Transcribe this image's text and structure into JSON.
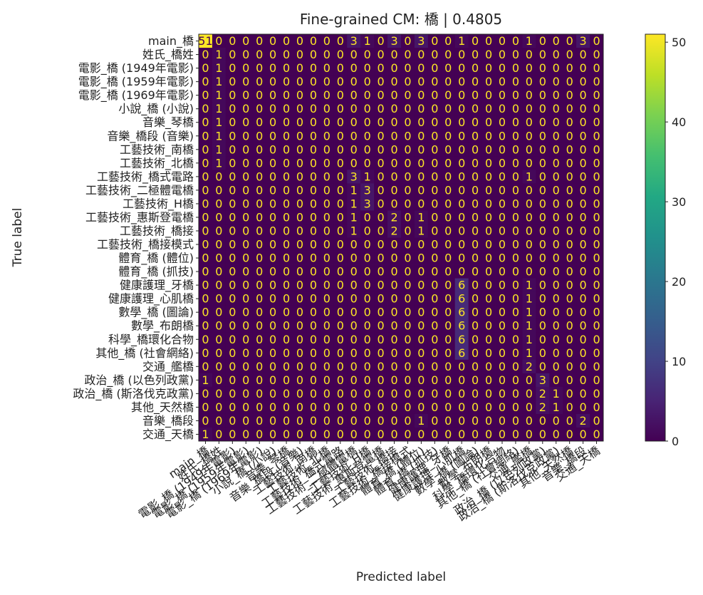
{
  "chart_data": {
    "type": "heatmap",
    "title": "Fine-grained CM: 橋 | 0.4805",
    "xlabel": "Predicted label",
    "ylabel": "True label",
    "labels": [
      "main_橋",
      "姓氏_橋姓",
      "電影_橋 (1949年電影)",
      "電影_橋 (1959年電影)",
      "電影_橋 (1969年電影)",
      "小說_橋 (小說)",
      "音樂_琴橋",
      "音樂_橋段 (音樂)",
      "工藝技術_南橋",
      "工藝技術_北橋",
      "工藝技術_橋式電路",
      "工藝技術_二極體電橋",
      "工藝技術_H橋",
      "工藝技術_惠斯登電橋",
      "工藝技術_橋接",
      "工藝技術_橋接模式",
      "體育_橋 (體位)",
      "體育_橋 (抓技)",
      "健康護理_牙橋",
      "健康護理_心肌橋",
      "數學_橋 (圖論)",
      "數學_布朗橋",
      "科學_橋環化合物",
      "其他_橋 (社會網絡)",
      "交通_艦橋",
      "政治_橋 (以色列政黨)",
      "政治_橋 (斯洛伐克政黨)",
      "其他_天然橋",
      "音樂_橋段",
      "交通_天橋"
    ],
    "matrix": [
      [
        51,
        0,
        0,
        0,
        0,
        0,
        0,
        0,
        0,
        0,
        0,
        3,
        1,
        0,
        3,
        0,
        3,
        0,
        0,
        1,
        0,
        0,
        0,
        0,
        1,
        0,
        0,
        0,
        3,
        0
      ],
      [
        0,
        1,
        0,
        0,
        0,
        0,
        0,
        0,
        0,
        0,
        0,
        0,
        0,
        0,
        0,
        0,
        0,
        0,
        0,
        0,
        0,
        0,
        0,
        0,
        0,
        0,
        0,
        0,
        0,
        0
      ],
      [
        0,
        1,
        0,
        0,
        0,
        0,
        0,
        0,
        0,
        0,
        0,
        0,
        0,
        0,
        0,
        0,
        0,
        0,
        0,
        0,
        0,
        0,
        0,
        0,
        0,
        0,
        0,
        0,
        0,
        0
      ],
      [
        0,
        1,
        0,
        0,
        0,
        0,
        0,
        0,
        0,
        0,
        0,
        0,
        0,
        0,
        0,
        0,
        0,
        0,
        0,
        0,
        0,
        0,
        0,
        0,
        0,
        0,
        0,
        0,
        0,
        0
      ],
      [
        0,
        1,
        0,
        0,
        0,
        0,
        0,
        0,
        0,
        0,
        0,
        0,
        0,
        0,
        0,
        0,
        0,
        0,
        0,
        0,
        0,
        0,
        0,
        0,
        0,
        0,
        0,
        0,
        0,
        0
      ],
      [
        0,
        1,
        0,
        0,
        0,
        0,
        0,
        0,
        0,
        0,
        0,
        0,
        0,
        0,
        0,
        0,
        0,
        0,
        0,
        0,
        0,
        0,
        0,
        0,
        0,
        0,
        0,
        0,
        0,
        0
      ],
      [
        0,
        1,
        0,
        0,
        0,
        0,
        0,
        0,
        0,
        0,
        0,
        0,
        0,
        0,
        0,
        0,
        0,
        0,
        0,
        0,
        0,
        0,
        0,
        0,
        0,
        0,
        0,
        0,
        0,
        0
      ],
      [
        0,
        1,
        0,
        0,
        0,
        0,
        0,
        0,
        0,
        0,
        0,
        0,
        0,
        0,
        0,
        0,
        0,
        0,
        0,
        0,
        0,
        0,
        0,
        0,
        0,
        0,
        0,
        0,
        0,
        0
      ],
      [
        0,
        1,
        0,
        0,
        0,
        0,
        0,
        0,
        0,
        0,
        0,
        0,
        0,
        0,
        0,
        0,
        0,
        0,
        0,
        0,
        0,
        0,
        0,
        0,
        0,
        0,
        0,
        0,
        0,
        0
      ],
      [
        0,
        1,
        0,
        0,
        0,
        0,
        0,
        0,
        0,
        0,
        0,
        0,
        0,
        0,
        0,
        0,
        0,
        0,
        0,
        0,
        0,
        0,
        0,
        0,
        0,
        0,
        0,
        0,
        0,
        0
      ],
      [
        0,
        0,
        0,
        0,
        0,
        0,
        0,
        0,
        0,
        0,
        0,
        3,
        1,
        0,
        0,
        0,
        0,
        0,
        0,
        0,
        0,
        0,
        0,
        0,
        1,
        0,
        0,
        0,
        0,
        0
      ],
      [
        0,
        0,
        0,
        0,
        0,
        0,
        0,
        0,
        0,
        0,
        0,
        1,
        3,
        0,
        0,
        0,
        0,
        0,
        0,
        0,
        0,
        0,
        0,
        0,
        0,
        0,
        0,
        0,
        0,
        0
      ],
      [
        0,
        0,
        0,
        0,
        0,
        0,
        0,
        0,
        0,
        0,
        0,
        1,
        3,
        0,
        0,
        0,
        0,
        0,
        0,
        0,
        0,
        0,
        0,
        0,
        0,
        0,
        0,
        0,
        0,
        0
      ],
      [
        0,
        0,
        0,
        0,
        0,
        0,
        0,
        0,
        0,
        0,
        0,
        1,
        0,
        0,
        2,
        0,
        1,
        0,
        0,
        0,
        0,
        0,
        0,
        0,
        0,
        0,
        0,
        0,
        0,
        0
      ],
      [
        0,
        0,
        0,
        0,
        0,
        0,
        0,
        0,
        0,
        0,
        0,
        1,
        0,
        0,
        2,
        0,
        1,
        0,
        0,
        0,
        0,
        0,
        0,
        0,
        0,
        0,
        0,
        0,
        0,
        0
      ],
      [
        0,
        0,
        0,
        0,
        0,
        0,
        0,
        0,
        0,
        0,
        0,
        0,
        0,
        0,
        0,
        0,
        0,
        0,
        0,
        0,
        0,
        0,
        0,
        0,
        0,
        0,
        0,
        0,
        0,
        0
      ],
      [
        0,
        0,
        0,
        0,
        0,
        0,
        0,
        0,
        0,
        0,
        0,
        0,
        0,
        0,
        0,
        0,
        0,
        0,
        0,
        0,
        0,
        0,
        0,
        0,
        0,
        0,
        0,
        0,
        0,
        0
      ],
      [
        0,
        0,
        0,
        0,
        0,
        0,
        0,
        0,
        0,
        0,
        0,
        0,
        0,
        0,
        0,
        0,
        0,
        0,
        0,
        0,
        0,
        0,
        0,
        0,
        0,
        0,
        0,
        0,
        0,
        0
      ],
      [
        0,
        0,
        0,
        0,
        0,
        0,
        0,
        0,
        0,
        0,
        0,
        0,
        0,
        0,
        0,
        0,
        0,
        0,
        0,
        6,
        0,
        0,
        0,
        0,
        1,
        0,
        0,
        0,
        0,
        0
      ],
      [
        0,
        0,
        0,
        0,
        0,
        0,
        0,
        0,
        0,
        0,
        0,
        0,
        0,
        0,
        0,
        0,
        0,
        0,
        0,
        6,
        0,
        0,
        0,
        0,
        1,
        0,
        0,
        0,
        0,
        0
      ],
      [
        0,
        0,
        0,
        0,
        0,
        0,
        0,
        0,
        0,
        0,
        0,
        0,
        0,
        0,
        0,
        0,
        0,
        0,
        0,
        6,
        0,
        0,
        0,
        0,
        1,
        0,
        0,
        0,
        0,
        0
      ],
      [
        0,
        0,
        0,
        0,
        0,
        0,
        0,
        0,
        0,
        0,
        0,
        0,
        0,
        0,
        0,
        0,
        0,
        0,
        0,
        6,
        0,
        0,
        0,
        0,
        1,
        0,
        0,
        0,
        0,
        0
      ],
      [
        0,
        0,
        0,
        0,
        0,
        0,
        0,
        0,
        0,
        0,
        0,
        0,
        0,
        0,
        0,
        0,
        0,
        0,
        0,
        6,
        0,
        0,
        0,
        0,
        1,
        0,
        0,
        0,
        0,
        0
      ],
      [
        0,
        0,
        0,
        0,
        0,
        0,
        0,
        0,
        0,
        0,
        0,
        0,
        0,
        0,
        0,
        0,
        0,
        0,
        0,
        6,
        0,
        0,
        0,
        0,
        1,
        0,
        0,
        0,
        0,
        0
      ],
      [
        0,
        0,
        0,
        0,
        0,
        0,
        0,
        0,
        0,
        0,
        0,
        0,
        0,
        0,
        0,
        0,
        0,
        0,
        0,
        0,
        0,
        0,
        0,
        0,
        2,
        0,
        0,
        0,
        0,
        0
      ],
      [
        1,
        0,
        0,
        0,
        0,
        0,
        0,
        0,
        0,
        0,
        0,
        0,
        0,
        0,
        0,
        0,
        0,
        0,
        0,
        0,
        0,
        0,
        0,
        0,
        0,
        3,
        0,
        0,
        0,
        0
      ],
      [
        0,
        0,
        0,
        0,
        0,
        0,
        0,
        0,
        0,
        0,
        0,
        0,
        0,
        0,
        0,
        0,
        0,
        0,
        0,
        0,
        0,
        0,
        0,
        0,
        0,
        2,
        1,
        0,
        0,
        0
      ],
      [
        0,
        0,
        0,
        0,
        0,
        0,
        0,
        0,
        0,
        0,
        0,
        0,
        0,
        0,
        0,
        0,
        0,
        0,
        0,
        0,
        0,
        0,
        0,
        0,
        0,
        2,
        1,
        0,
        0,
        0
      ],
      [
        0,
        0,
        0,
        0,
        0,
        0,
        0,
        0,
        0,
        0,
        0,
        0,
        0,
        0,
        0,
        0,
        1,
        0,
        0,
        0,
        0,
        0,
        0,
        0,
        0,
        0,
        0,
        0,
        2,
        0
      ],
      [
        1,
        0,
        0,
        0,
        0,
        0,
        0,
        0,
        0,
        0,
        0,
        0,
        0,
        0,
        0,
        0,
        0,
        0,
        0,
        0,
        0,
        0,
        0,
        0,
        0,
        0,
        0,
        0,
        0,
        0
      ]
    ],
    "zlim": [
      0,
      51
    ],
    "colorbar_ticks": [
      0,
      10,
      20,
      30,
      40,
      50
    ],
    "colormap": "viridis",
    "text_color_low": "#fde725",
    "text_color_high": "#440154"
  }
}
